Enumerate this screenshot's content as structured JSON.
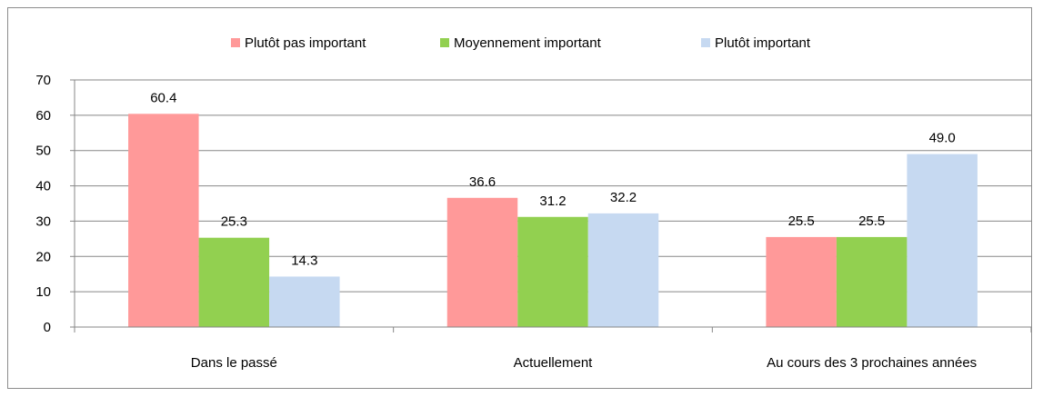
{
  "chart_data": {
    "type": "bar",
    "title": "",
    "xlabel": "",
    "ylabel": "",
    "ylim": [
      0,
      70
    ],
    "yticks": [
      0,
      10,
      20,
      30,
      40,
      50,
      60,
      70
    ],
    "grid": true,
    "legend_position": "top",
    "categories": [
      "Dans le passé",
      "Actuellement",
      "Au cours des 3 prochaines années"
    ],
    "series": [
      {
        "name": "Plutôt pas important",
        "color": "#ff9999",
        "values": [
          60.4,
          36.6,
          25.5
        ],
        "labels": [
          "60.4",
          "36.6",
          "25.5"
        ]
      },
      {
        "name": "Moyennement important",
        "color": "#92d050",
        "values": [
          25.3,
          31.2,
          25.5
        ],
        "labels": [
          "25.3",
          "31.2",
          "25.5"
        ]
      },
      {
        "name": "Plutôt important",
        "color": "#c6d9f1",
        "values": [
          14.3,
          32.2,
          49.0
        ],
        "labels": [
          "14.3",
          "32.2",
          "49.0"
        ]
      }
    ]
  }
}
